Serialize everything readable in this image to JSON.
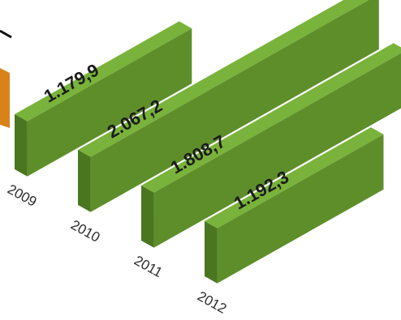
{
  "chart_data": {
    "type": "bar",
    "categories": [
      "2009",
      "2010",
      "2011",
      "2012"
    ],
    "values": [
      1179.9,
      2067.2,
      1808.7,
      1192.3
    ],
    "value_labels": [
      "1.179,9",
      "2.067,2",
      "1.808,7",
      "1.192,3"
    ],
    "title": "",
    "xlabel": "",
    "ylabel": "",
    "style": "3d-isometric",
    "colors": {
      "bar_front": "#5e8e2a",
      "bar_side": "#4a7620",
      "bar_top": "#79b33b",
      "partial_bar_front": "#d9821a",
      "partial_bar_side": "#b86a12"
    }
  }
}
